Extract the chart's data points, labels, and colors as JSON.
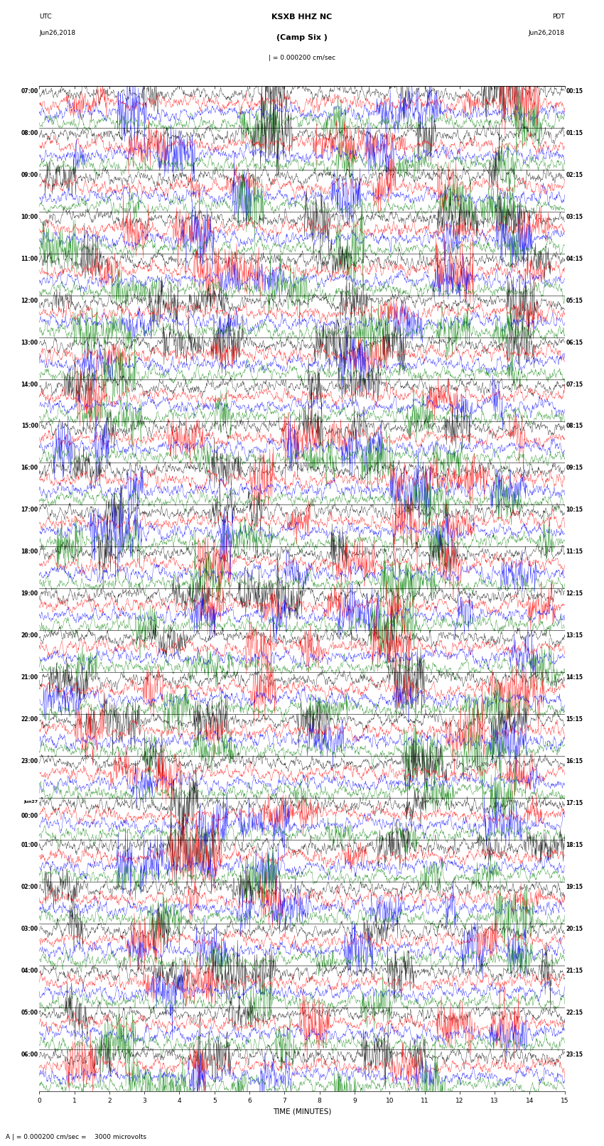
{
  "title_line1": "KSXB HHZ NC",
  "title_line2": "(Camp Six )",
  "scale_label": "| = 0.000200 cm/sec",
  "left_header1": "UTC",
  "left_header2": "Jun26,2018",
  "right_header1": "PDT",
  "right_header2": "Jun26,2018",
  "xlabel": "TIME (MINUTES)",
  "bottom_note": "A | = 0.000200 cm/sec =    3000 microvolts",
  "utc_times": [
    "07:00",
    "08:00",
    "09:00",
    "10:00",
    "11:00",
    "12:00",
    "13:00",
    "14:00",
    "15:00",
    "16:00",
    "17:00",
    "18:00",
    "19:00",
    "20:00",
    "21:00",
    "22:00",
    "23:00",
    "Jun27\n00:00",
    "01:00",
    "02:00",
    "03:00",
    "04:00",
    "05:00",
    "06:00"
  ],
  "pdt_times": [
    "00:15",
    "01:15",
    "02:15",
    "03:15",
    "04:15",
    "05:15",
    "06:15",
    "07:15",
    "08:15",
    "09:15",
    "10:15",
    "11:15",
    "12:15",
    "13:15",
    "14:15",
    "15:15",
    "16:15",
    "17:15",
    "18:15",
    "19:15",
    "20:15",
    "21:15",
    "22:15",
    "23:15"
  ],
  "n_rows": 24,
  "n_traces_per_row": 4,
  "trace_colors": [
    "black",
    "red",
    "blue",
    "green"
  ],
  "x_min": 0,
  "x_max": 15,
  "x_ticks": [
    0,
    1,
    2,
    3,
    4,
    5,
    6,
    7,
    8,
    9,
    10,
    11,
    12,
    13,
    14,
    15
  ],
  "fig_width": 8.5,
  "fig_height": 16.13,
  "dpi": 100,
  "bg_color": "white",
  "noise_seed": 42
}
